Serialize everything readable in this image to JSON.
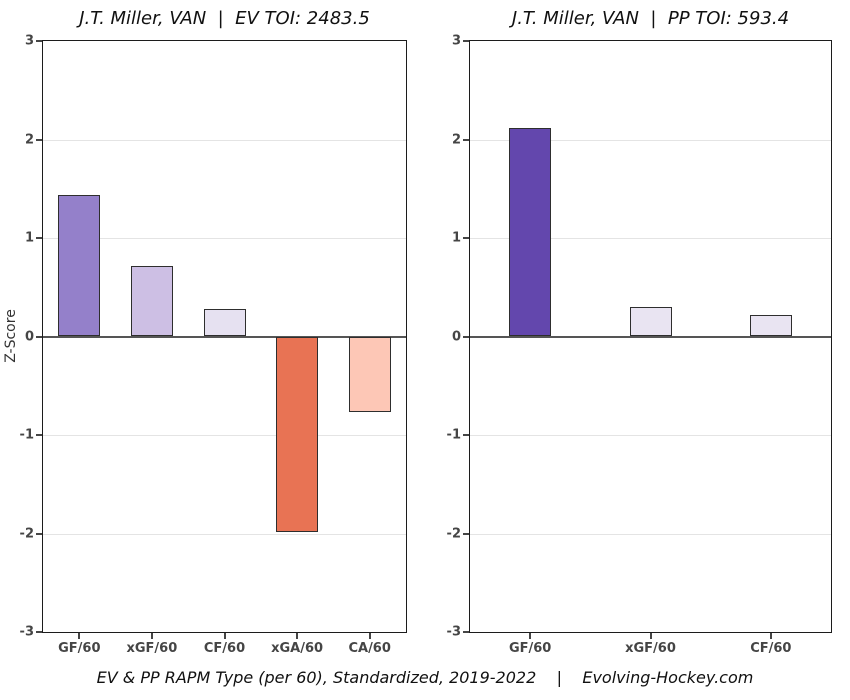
{
  "figure": {
    "background": "#ffffff",
    "caption": "EV & PP RAPM Type (per 60), Standardized, 2019-2022    |    Evolving-Hockey.com"
  },
  "chart_data": [
    {
      "type": "bar",
      "title": "J.T. Miller, VAN  |  EV TOI: 2483.5",
      "categories": [
        "GF/60",
        "xGF/60",
        "CF/60",
        "xGA/60",
        "CA/60"
      ],
      "values": [
        1.44,
        0.72,
        0.28,
        -1.98,
        -0.77
      ],
      "bar_colors": [
        "#9480ca",
        "#cdbfe4",
        "#e6e1f1",
        "#e87354",
        "#fdc7b6"
      ],
      "bar_border_color": "#2e2e2e",
      "xlabel": "",
      "ylabel": "Z-Score",
      "ylim": [
        -3,
        3
      ],
      "yticks": [
        3,
        2,
        1,
        0,
        -1,
        -2,
        -3
      ],
      "grid": true,
      "gridline_color": "#e4e4e4",
      "zero_line_color": "#555555",
      "legend": "none"
    },
    {
      "type": "bar",
      "title": "J.T. Miller, VAN  |  PP TOI: 593.4",
      "categories": [
        "GF/60",
        "xGF/60",
        "CF/60"
      ],
      "values": [
        2.12,
        0.3,
        0.22
      ],
      "bar_colors": [
        "#6347ad",
        "#e9e4f2",
        "#e9e4f2"
      ],
      "bar_border_color": "#2e2e2e",
      "xlabel": "",
      "ylabel": "",
      "ylim": [
        -3,
        3
      ],
      "yticks": [
        3,
        2,
        1,
        0,
        -1,
        -2,
        -3
      ],
      "grid": true,
      "gridline_color": "#e4e4e4",
      "zero_line_color": "#555555",
      "legend": "none"
    }
  ]
}
